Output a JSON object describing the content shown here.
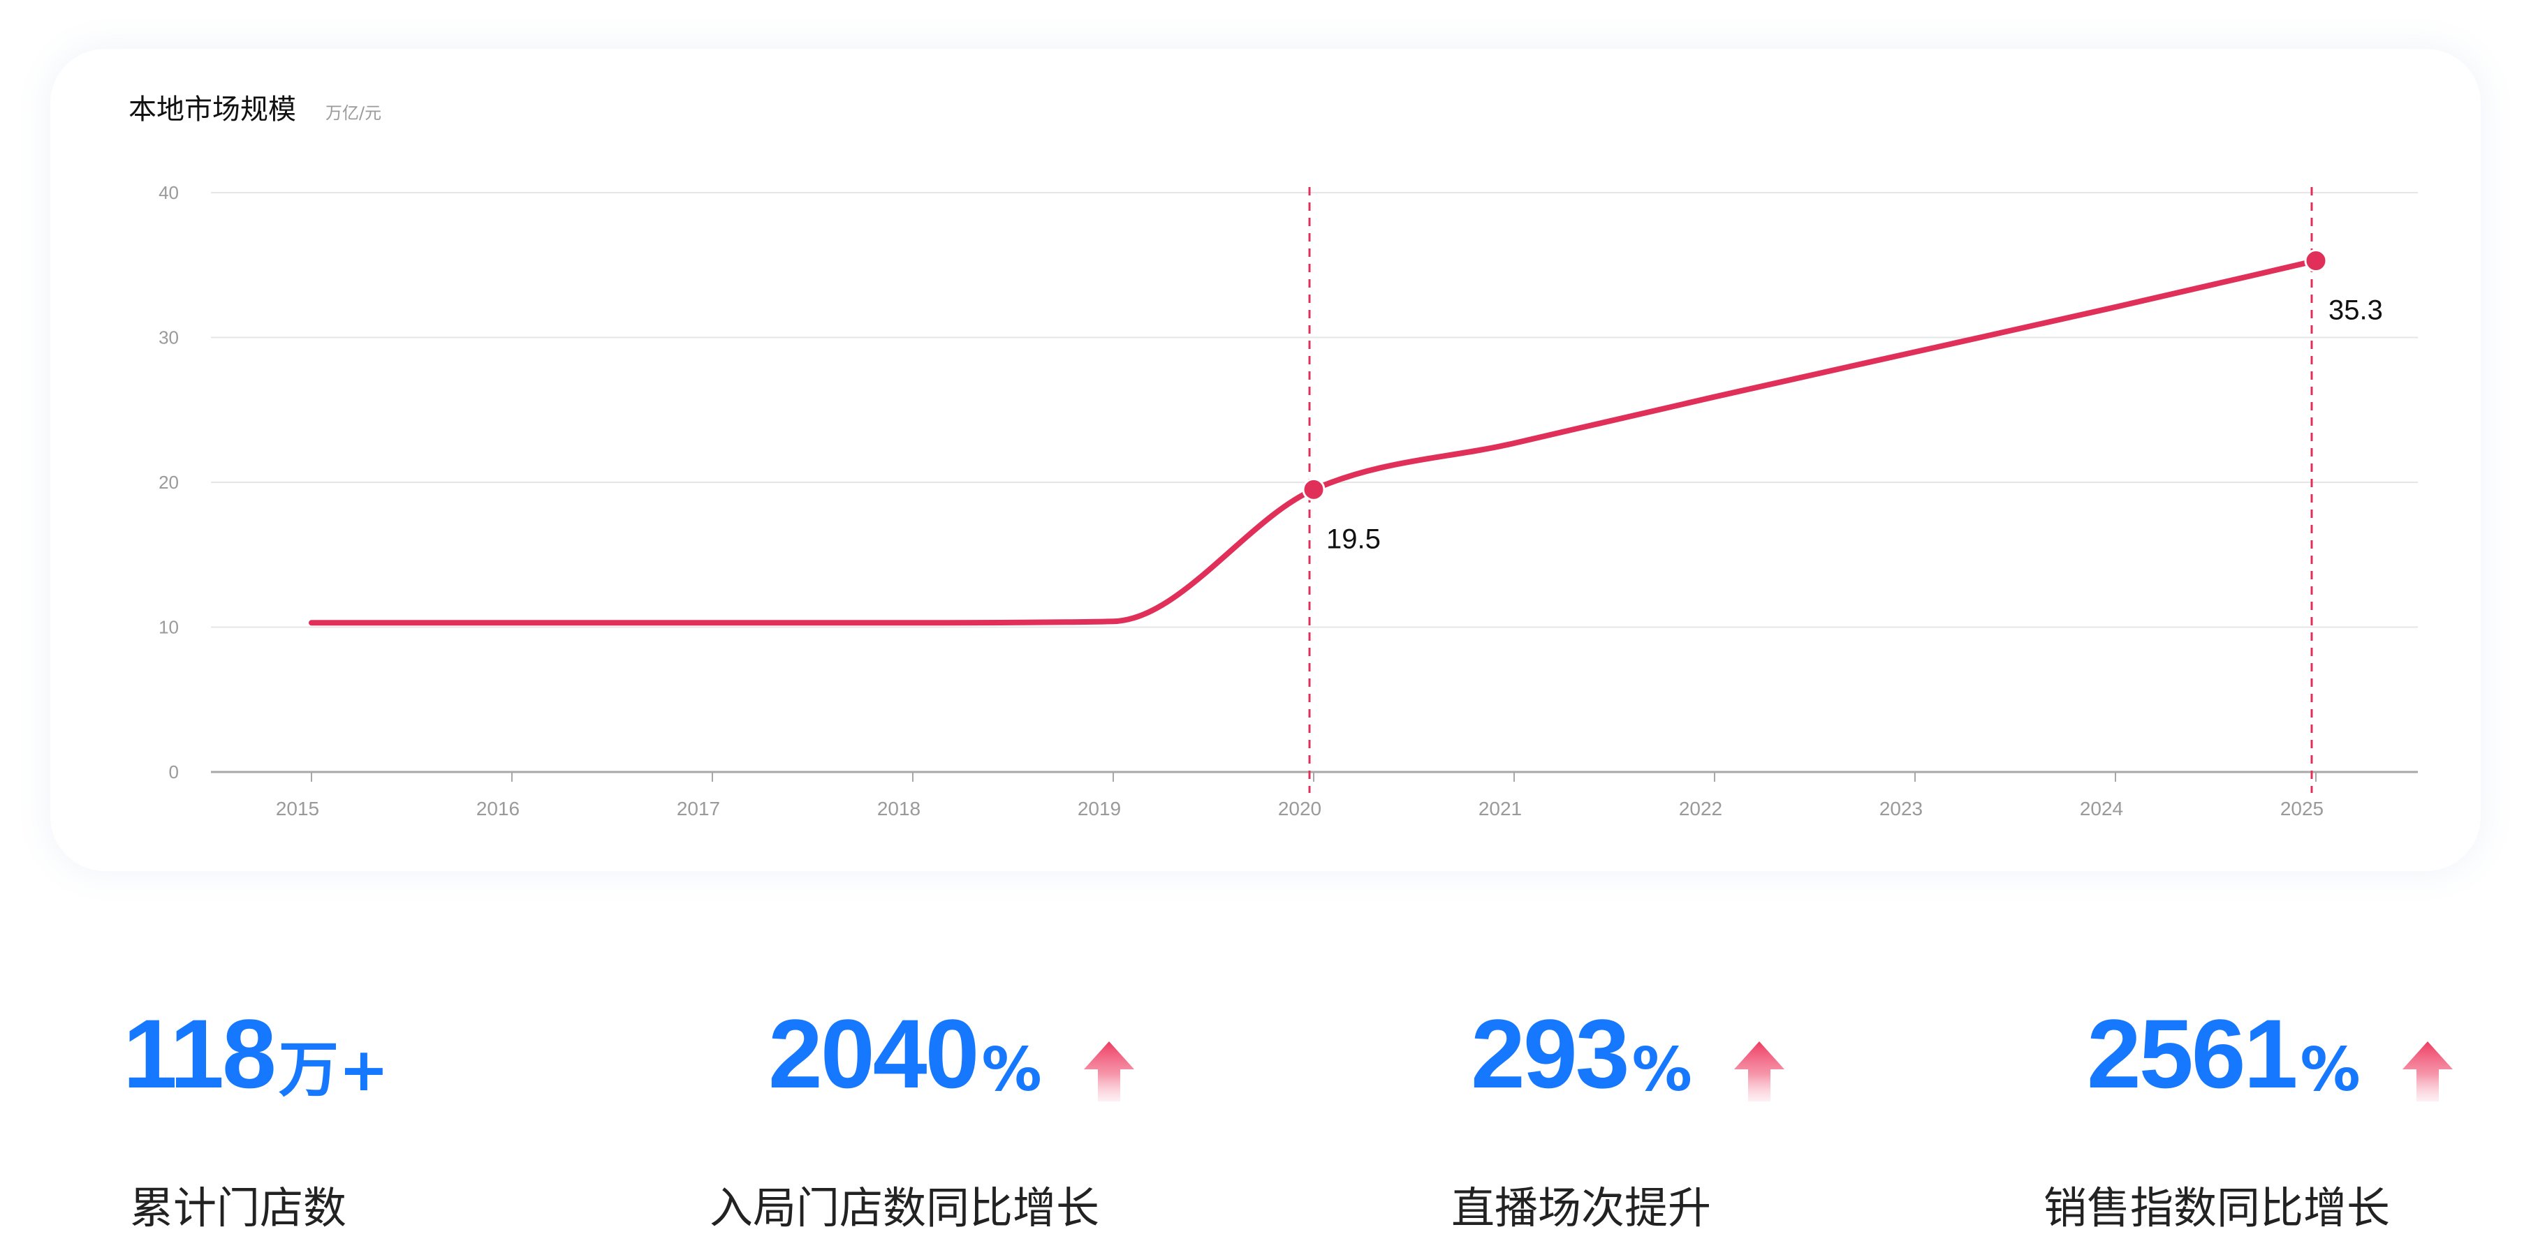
{
  "colors": {
    "accent": "#1677ff",
    "line": "#e0305a",
    "arrow": "#ef4a6e",
    "grid": "#e6e6e6",
    "axis": "#a7a7a7",
    "tick_text": "#9a9a9a",
    "title_text": "#111111"
  },
  "chart_data": {
    "type": "line",
    "title": "本地市场规模",
    "unit": "万亿/元",
    "x": [
      "2015",
      "2016",
      "2017",
      "2018",
      "2019",
      "2020",
      "2021",
      "2022",
      "2023",
      "2024",
      "2025"
    ],
    "series": [
      {
        "values": [
          10.3,
          10.3,
          10.3,
          10.3,
          10.4,
          19.5,
          22.7,
          25.9,
          29.0,
          32.1,
          35.3
        ]
      }
    ],
    "highlights": [
      {
        "x": "2020",
        "value": 19.5,
        "label": "19.5"
      },
      {
        "x": "2025",
        "value": 35.3,
        "label": "35.3"
      }
    ],
    "y_ticks": [
      "0",
      "10",
      "20",
      "30",
      "40"
    ],
    "ylim": [
      0,
      40
    ],
    "grid": true,
    "legend": "none"
  },
  "stats": [
    {
      "number": "118",
      "unit": "万+",
      "label": "累计门店数",
      "arrow": false,
      "arrow_icon": ""
    },
    {
      "number": "2040",
      "unit": "%",
      "label": "入局门店数同比增长",
      "arrow": true,
      "arrow_icon": "up-arrow-icon"
    },
    {
      "number": "293",
      "unit": "%",
      "label": "直播场次提升",
      "arrow": true,
      "arrow_icon": "up-arrow-icon"
    },
    {
      "number": "2561",
      "unit": "%",
      "label": "销售指数同比增长",
      "arrow": true,
      "arrow_icon": "up-arrow-icon"
    }
  ]
}
